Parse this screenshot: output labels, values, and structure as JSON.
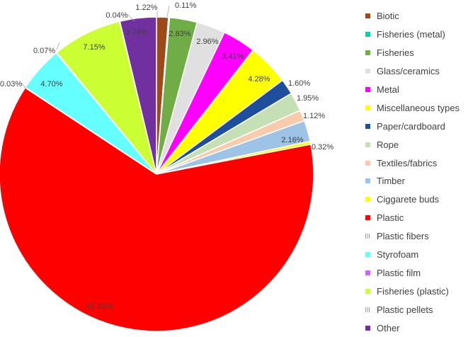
{
  "chart_data": {
    "type": "pie",
    "title": "",
    "legend_position": "right",
    "slices": [
      {
        "name": "Biotic",
        "value": 1.22,
        "label": "1.22%",
        "color": "#9c4a1a"
      },
      {
        "name": "Fisheries (metal)",
        "value": 0.11,
        "label": "0.11%",
        "color": "#00d6a0"
      },
      {
        "name": "Fisheries",
        "value": 2.83,
        "label": "2.83%",
        "color": "#70ad47"
      },
      {
        "name": "Glass/ceramics",
        "value": 2.96,
        "label": "2.96%",
        "color": "#e0e0e0"
      },
      {
        "name": "Metal",
        "value": 3.41,
        "label": "3.41%",
        "color": "#ff00ff"
      },
      {
        "name": "Miscellaneous types",
        "value": 4.28,
        "label": "4.28%",
        "color": "#ffff00"
      },
      {
        "name": "Paper/cardboard",
        "value": 1.6,
        "label": "1.60%",
        "color": "#1f4e9c"
      },
      {
        "name": "Rope",
        "value": 1.95,
        "label": "1.95%",
        "color": "#c5e0b4"
      },
      {
        "name": "Textiles/fabrics",
        "value": 1.12,
        "label": "1.12%",
        "color": "#f8cbad"
      },
      {
        "name": "Timber",
        "value": 2.16,
        "label": "2.16%",
        "color": "#9dc3e6"
      },
      {
        "name": "Ciggarete buds",
        "value": 0.32,
        "label": "0.32%",
        "color": "#ffff00"
      },
      {
        "name": "Plastic",
        "value": 62.31,
        "label": "62.31%",
        "color": "#ff0000"
      },
      {
        "name": "Plastic fibers",
        "value": 0.03,
        "label": "0.03%",
        "color": "#bfbfbf",
        "pattern": "hatch"
      },
      {
        "name": "Styrofoam",
        "value": 4.7,
        "label": "4.70%",
        "color": "#66ffff"
      },
      {
        "name": "Plastic film",
        "value": 0.07,
        "label": "0.07%",
        "color": "#cc66ff"
      },
      {
        "name": "Fisheries (plastic)",
        "value": 7.15,
        "label": "7.15%",
        "color": "#ccff33"
      },
      {
        "name": "Plastic pellets",
        "value": 0.04,
        "label": "0.04%",
        "color": "#bfbfbf",
        "pattern": "hatch"
      },
      {
        "name": "Other",
        "value": 3.74,
        "label": "3.74%",
        "color": "#7030a0"
      }
    ]
  }
}
